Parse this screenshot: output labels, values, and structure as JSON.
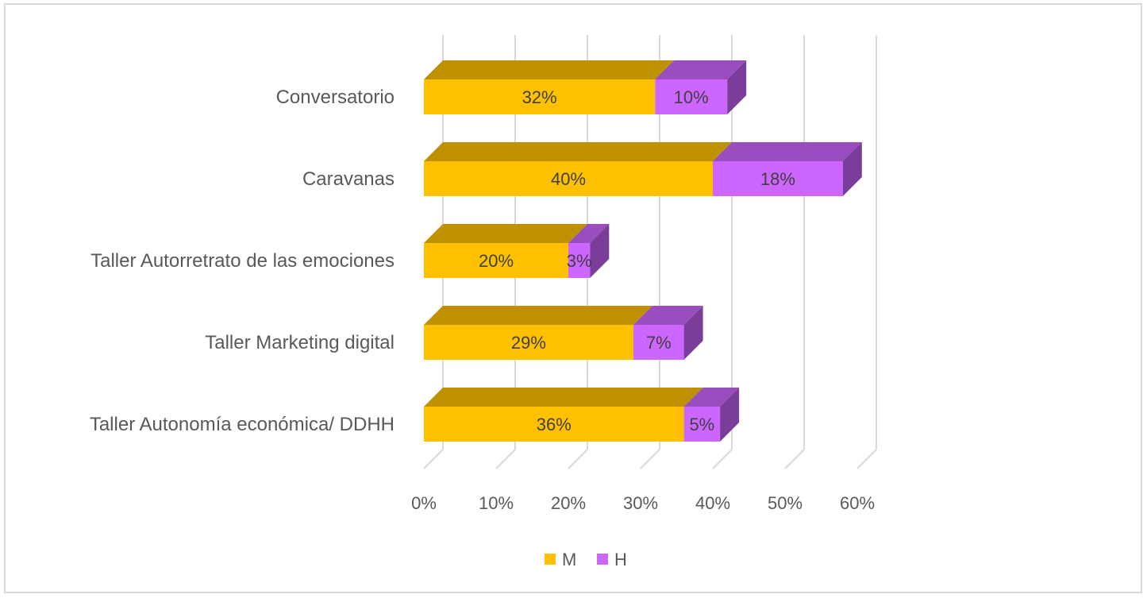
{
  "chart_data": {
    "type": "bar",
    "orientation": "horizontal",
    "stacked": true,
    "style": "3d",
    "title": "",
    "xlabel": "",
    "ylabel": "",
    "categories": [
      "Conversatorio",
      "Caravanas",
      "Taller Autorretrato de las emociones",
      "Taller Marketing digital",
      "Taller Autonomía económica/ DDHH"
    ],
    "series": [
      {
        "name": "M",
        "color": "#FFC000",
        "values": [
          32,
          40,
          20,
          29,
          36
        ],
        "labels": [
          "32%",
          "40%",
          "20%",
          "29%",
          "36%"
        ]
      },
      {
        "name": "H",
        "color": "#CC66FF",
        "values": [
          10,
          18,
          3,
          7,
          5
        ],
        "labels": [
          "10%",
          "18%",
          "3%",
          "7%",
          "5%"
        ]
      }
    ],
    "xlim": [
      0,
      60
    ],
    "ticks": [
      0,
      10,
      20,
      30,
      40,
      50,
      60
    ],
    "tick_labels": [
      "0%",
      "10%",
      "20%",
      "30%",
      "40%",
      "50%",
      "60%"
    ],
    "grid": true,
    "legend_position": "bottom"
  }
}
